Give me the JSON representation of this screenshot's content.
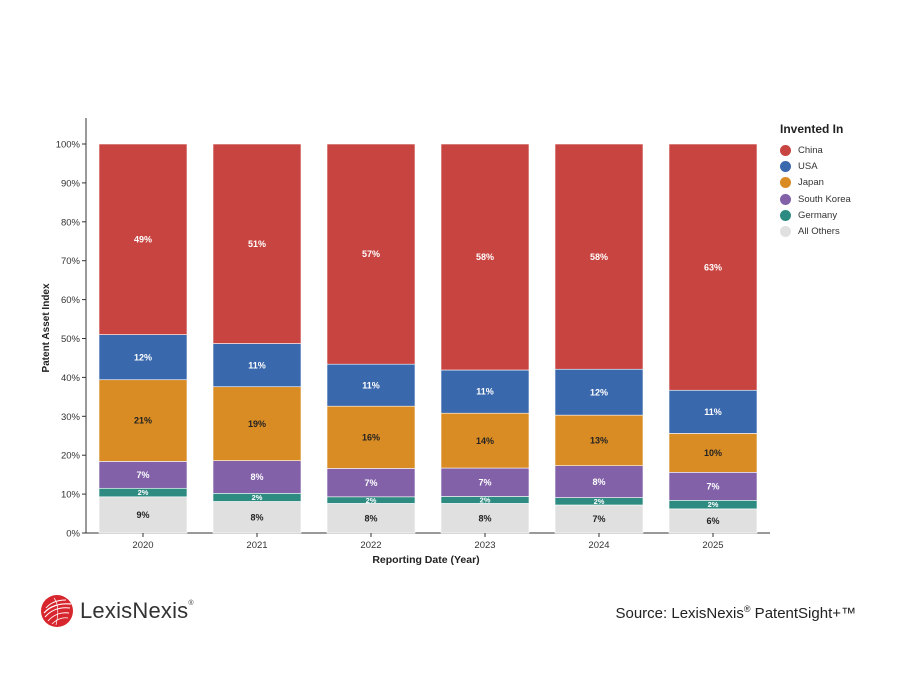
{
  "chart_data": {
    "type": "bar",
    "stacked": true,
    "normalized": true,
    "xlabel": "Reporting Date (Year)",
    "ylabel": "Patent Asset Index",
    "ylim": [
      0,
      100
    ],
    "yticks": [
      "0%",
      "10%",
      "20%",
      "30%",
      "40%",
      "50%",
      "60%",
      "70%",
      "80%",
      "90%",
      "100%"
    ],
    "categories": [
      "2020",
      "2021",
      "2022",
      "2023",
      "2024",
      "2025"
    ],
    "series": [
      {
        "name": "All Others",
        "color": "#e0e0e0",
        "label_color": "#222222",
        "values": [
          9.3,
          8.1,
          7.6,
          7.6,
          7.2,
          6.2
        ],
        "labels": [
          "9%",
          "8%",
          "8%",
          "8%",
          "7%",
          "6%"
        ]
      },
      {
        "name": "Germany",
        "color": "#2e8b82",
        "label_color": "#ffffff",
        "values": [
          2.2,
          2.1,
          1.7,
          1.8,
          1.9,
          2.2
        ],
        "labels": [
          "2%",
          "2%",
          "2%",
          "2%",
          "2%",
          "2%"
        ]
      },
      {
        "name": "South Korea",
        "color": "#8261a8",
        "label_color": "#ffffff",
        "values": [
          6.9,
          8.4,
          7.3,
          7.3,
          8.2,
          7.2
        ],
        "labels": [
          "7%",
          "8%",
          "7%",
          "7%",
          "8%",
          "7%"
        ]
      },
      {
        "name": "Japan",
        "color": "#d98c24",
        "label_color": "#222222",
        "values": [
          21.0,
          19.0,
          16.0,
          14.1,
          13.0,
          10.0
        ],
        "labels": [
          "21%",
          "19%",
          "16%",
          "14%",
          "13%",
          "10%"
        ]
      },
      {
        "name": "USA",
        "color": "#3a68ad",
        "label_color": "#ffffff",
        "values": [
          11.6,
          11.1,
          10.8,
          11.1,
          11.8,
          11.1
        ],
        "labels": [
          "12%",
          "11%",
          "11%",
          "11%",
          "12%",
          "11%"
        ]
      },
      {
        "name": "China",
        "color": "#c84440",
        "label_color": "#ffffff",
        "values": [
          49.0,
          51.3,
          56.6,
          58.1,
          57.9,
          63.3
        ],
        "labels": [
          "49%",
          "51%",
          "57%",
          "58%",
          "58%",
          "63%"
        ]
      }
    ],
    "legend": {
      "title": "Invented In",
      "placement": "right",
      "order": [
        "China",
        "USA",
        "Japan",
        "South Korea",
        "Germany",
        "All Others"
      ]
    },
    "grid": false
  },
  "brand": {
    "logo_text": "LexisNexis",
    "registered_mark": "®"
  },
  "source": {
    "prefix": "Source: LexisNexis",
    "registered_mark": "®",
    "suffix": " PatentSight+™"
  }
}
